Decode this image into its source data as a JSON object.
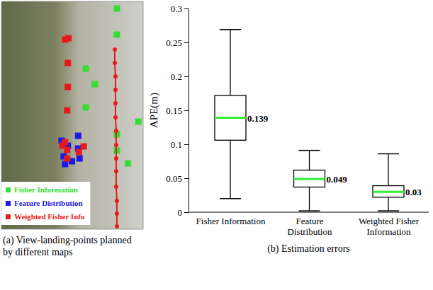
{
  "chart_data": [
    {
      "type": "scatter",
      "title": "(a) View-landing-points planned by different maps",
      "xlim": [
        0,
        205
      ],
      "ylim": [
        0,
        322
      ],
      "tick_labels": false,
      "legend": "lower left",
      "series": [
        {
          "name": "Fisher Information",
          "color": "#33dd33",
          "marker": "square",
          "x": [
            167,
            167,
            122,
            135,
            122,
            198,
            167,
            167,
            183
          ],
          "y": [
            312,
            275,
            227,
            205,
            172,
            152,
            134,
            111,
            93
          ]
        },
        {
          "name": "Feature Distribution",
          "color": "#1a1ae6",
          "marker": "square",
          "x": [
            111,
            87,
            96,
            111,
            90,
            102,
            92,
            113
          ],
          "y": [
            132,
            125,
            118,
            114,
            103,
            96,
            92,
            100
          ]
        },
        {
          "name": "Weighted Fisher Info",
          "color": "#e61a1a",
          "marker": "square",
          "x": [
            92,
            97,
            96,
            96,
            95,
            92,
            95,
            119,
            112,
            95,
            88
          ],
          "y": [
            268,
            270,
            235,
            201,
            168,
            123,
            112,
            117,
            109,
            100,
            118
          ]
        },
        {
          "color": "#e61a1a",
          "marker": "circle",
          "line_style": "solid",
          "x": [
            164,
            164,
            165,
            165,
            165,
            165,
            166,
            166,
            166,
            166,
            166,
            167,
            167,
            167
          ],
          "y": [
            254,
            235,
            216,
            197,
            178,
            158,
            139,
            119,
            100,
            82,
            60,
            40,
            22,
            4
          ]
        }
      ]
    },
    {
      "type": "box",
      "title": "(b) Estimation errors",
      "y_label": "APE(m)",
      "categories": [
        "Fisher Information",
        "Feature Distribution",
        "Weighted Fisher Information"
      ],
      "min": [
        0.02,
        0.002,
        0.002
      ],
      "q1": [
        0.106,
        0.037,
        0.022
      ],
      "median": [
        0.139,
        0.049,
        0.03
      ],
      "q3": [
        0.172,
        0.062,
        0.039
      ],
      "max": [
        0.269,
        0.091,
        0.086
      ],
      "ylim": [
        0,
        0.3
      ],
      "yticks": [
        0,
        0.05,
        0.1,
        0.15,
        0.2,
        0.25,
        0.3
      ],
      "data_labels": true
    }
  ]
}
